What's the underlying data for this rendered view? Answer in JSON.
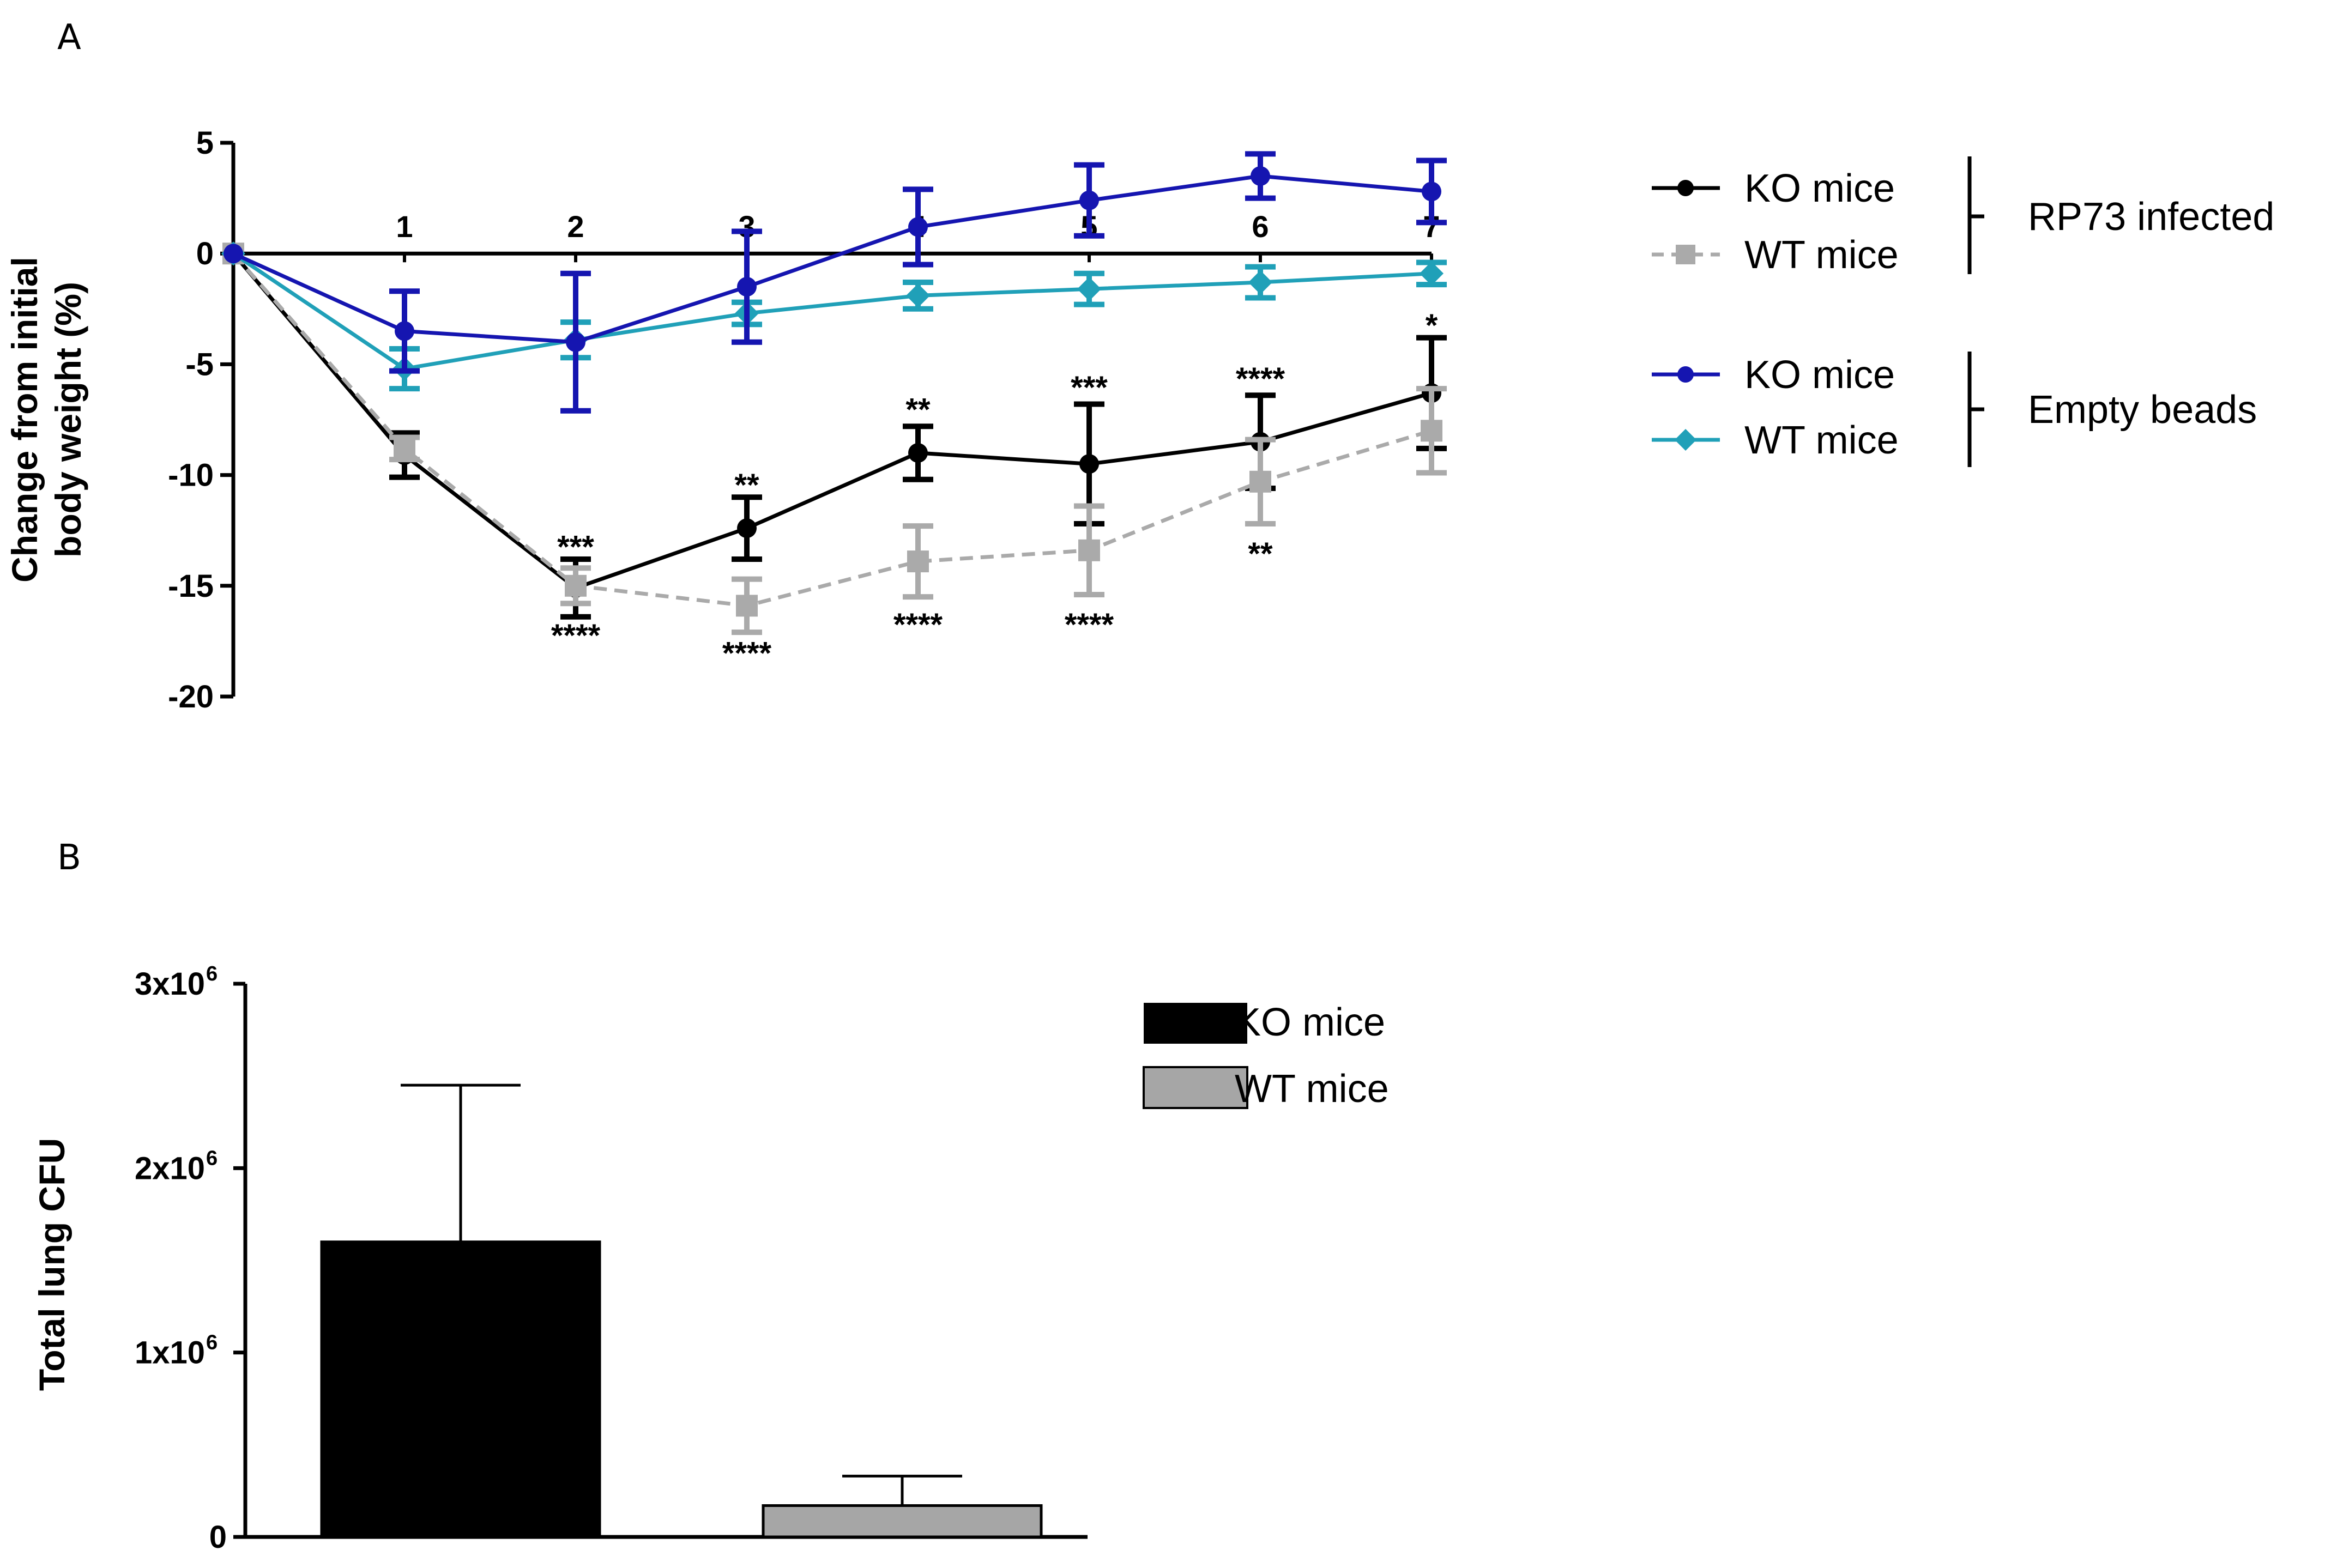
{
  "chart_data": [
    {
      "panel": "A",
      "type": "line",
      "ylabel": [
        "Change from initial",
        "body weight (%)"
      ],
      "ylim": [
        -20,
        5
      ],
      "yticks": [
        5,
        0,
        -5,
        -10,
        -15,
        -20
      ],
      "x": [
        0,
        1,
        2,
        3,
        4,
        5,
        6,
        7
      ],
      "xtick_labels": [
        "1",
        "2",
        "3",
        "4",
        "5",
        "6",
        "7"
      ],
      "series": [
        {
          "name": "KO mice",
          "group": "RP73 infected",
          "color": "#000000",
          "marker": "circle",
          "dash": false,
          "values": [
            0,
            -9.1,
            -15.1,
            -12.4,
            -9.0,
            -9.5,
            -8.5,
            -6.3
          ],
          "errors": [
            0,
            1.0,
            1.3,
            1.4,
            1.2,
            2.7,
            2.1,
            2.5
          ]
        },
        {
          "name": "WT mice",
          "group": "RP73 infected",
          "color": "#aaaaaa",
          "marker": "square",
          "dash": true,
          "values": [
            0,
            -8.8,
            -15.0,
            -15.9,
            -13.9,
            -13.4,
            -10.3,
            -8.0
          ],
          "errors": [
            0,
            0.5,
            0.8,
            1.2,
            1.6,
            2.0,
            1.9,
            1.9
          ]
        },
        {
          "name": "KO mice",
          "group": "Empty beads",
          "color": "#1515b0",
          "marker": "circle",
          "dash": false,
          "values": [
            0,
            -3.5,
            -4.0,
            -1.5,
            1.2,
            2.4,
            3.5,
            2.8
          ],
          "errors": [
            0,
            1.8,
            3.1,
            2.5,
            1.7,
            1.6,
            1.0,
            1.4
          ]
        },
        {
          "name": "WT mice",
          "group": "Empty beads",
          "color": "#20a0b8",
          "marker": "diamond",
          "dash": false,
          "values": [
            0,
            -5.2,
            -3.9,
            -2.7,
            -1.9,
            -1.6,
            -1.3,
            -0.9
          ],
          "errors": [
            0,
            0.9,
            0.8,
            0.5,
            0.6,
            0.7,
            0.7,
            0.5
          ]
        }
      ],
      "annotations": [
        {
          "x": 2,
          "y": -13.2,
          "text": "***"
        },
        {
          "x": 2,
          "y": -17.2,
          "text": "****"
        },
        {
          "x": 3,
          "y": -10.4,
          "text": "**"
        },
        {
          "x": 3,
          "y": -18.0,
          "text": "****"
        },
        {
          "x": 4,
          "y": -7.0,
          "text": "**"
        },
        {
          "x": 4,
          "y": -16.7,
          "text": "****"
        },
        {
          "x": 5,
          "y": -6.0,
          "text": "***"
        },
        {
          "x": 5,
          "y": -16.7,
          "text": "****"
        },
        {
          "x": 6,
          "y": -5.6,
          "text": "****"
        },
        {
          "x": 6,
          "y": -13.5,
          "text": "**"
        },
        {
          "x": 7,
          "y": -3.2,
          "text": "*"
        }
      ],
      "legend_groups": [
        "RP73 infected",
        "Empty beads"
      ]
    },
    {
      "panel": "B",
      "type": "bar",
      "ylabel": "Total lung CFU",
      "ylim": [
        0,
        3000000
      ],
      "ytick_labels": [
        "0",
        "1x10",
        "2x10",
        "3x10"
      ],
      "ytick_exponents": [
        "",
        "6",
        "6",
        "6"
      ],
      "categories": [
        "KO mice",
        "WT mice"
      ],
      "values": [
        1600000,
        170000
      ],
      "errors": [
        850000,
        160000
      ],
      "colors": [
        "#000000",
        "#a6a6a6"
      ]
    }
  ]
}
